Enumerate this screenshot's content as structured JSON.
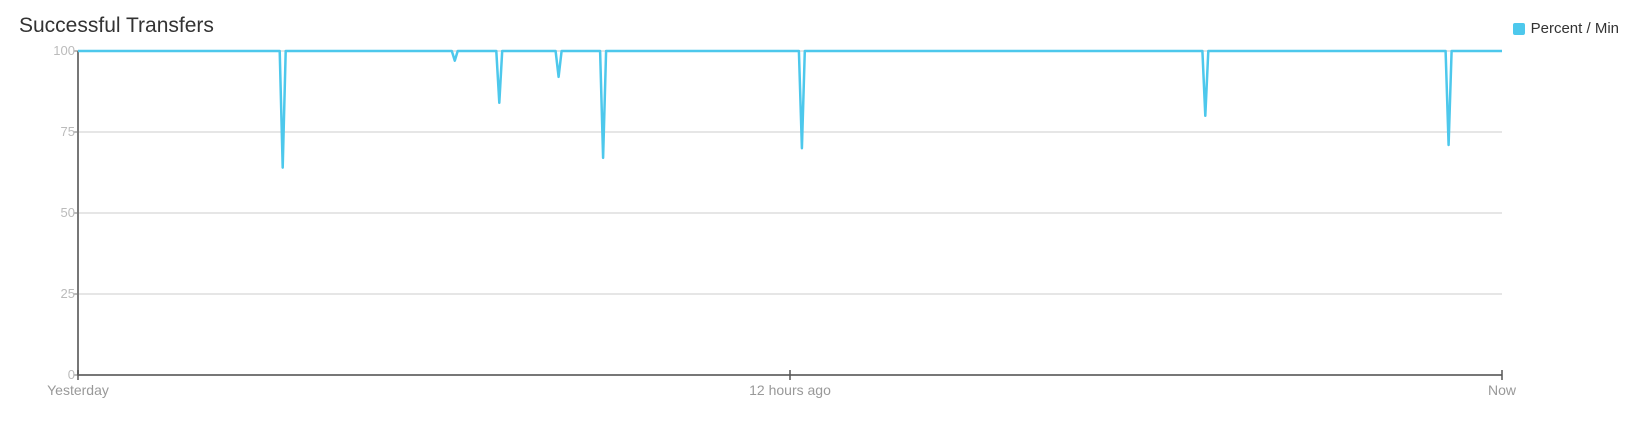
{
  "chart_data": {
    "type": "line",
    "title": "Successful Transfers",
    "xlabel": "",
    "ylabel": "",
    "ylim": [
      0,
      100
    ],
    "y_ticks": [
      0,
      25,
      50,
      75,
      100
    ],
    "x_ticks": [
      "Yesterday",
      "12 hours ago",
      "Now"
    ],
    "x_unit": "hours ago",
    "xlim": [
      24,
      0
    ],
    "grid": true,
    "legend_position": "top-right",
    "series": [
      {
        "name": "Percent / Min",
        "color": "#4dc8ec",
        "x": [
          24,
          20.6,
          20.55,
          20.5,
          17.7,
          17.65,
          17.6,
          16.95,
          16.9,
          16.85,
          15.95,
          15.9,
          15.85,
          15.2,
          15.15,
          15.1,
          11.85,
          11.8,
          11.75,
          5.05,
          5.0,
          4.95,
          0.95,
          0.9,
          0.85,
          0
        ],
        "y": [
          100,
          100,
          64,
          100,
          100,
          97,
          100,
          100,
          84,
          100,
          100,
          92,
          100,
          100,
          67,
          100,
          100,
          70,
          100,
          100,
          80,
          100,
          100,
          71,
          100,
          100
        ]
      }
    ]
  }
}
